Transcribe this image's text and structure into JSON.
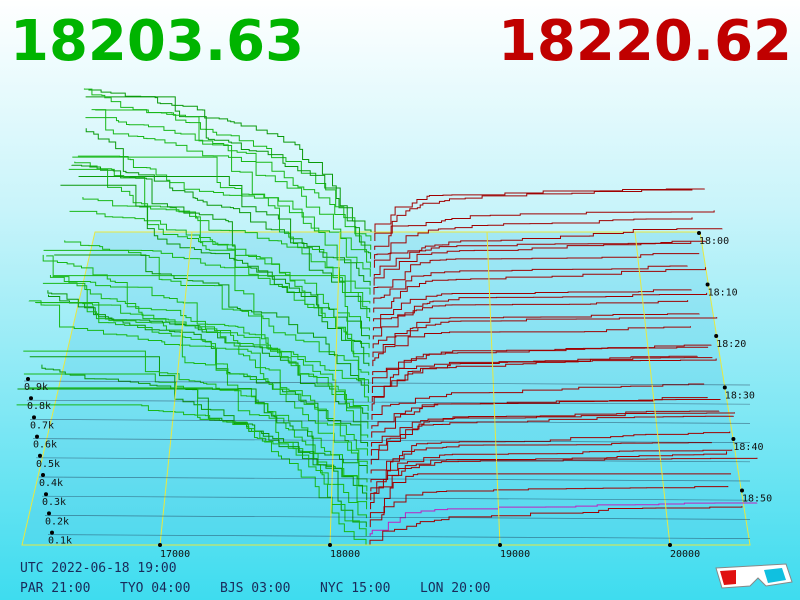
{
  "prices": {
    "bid": "18203.63",
    "ask": "18220.62"
  },
  "price_axis": {
    "ticks": [
      "17000",
      "18000",
      "19000",
      "20000"
    ]
  },
  "quantity_axis": {
    "ticks": [
      "0.9k",
      "0.8k",
      "0.7k",
      "0.6k",
      "0.5k",
      "0.4k",
      "0.3k",
      "0.2k",
      "0.1k"
    ]
  },
  "time_axis": {
    "ticks": [
      "18:00",
      "18:10",
      "18:20",
      "18:30",
      "18:40",
      "18:50"
    ]
  },
  "footer": {
    "utc": "UTC 2022-06-18 19:00",
    "cities": [
      "PAR 21:00",
      "TYO 04:00",
      "BJS 03:00",
      "NYC 15:00",
      "LON 20:00"
    ]
  }
}
